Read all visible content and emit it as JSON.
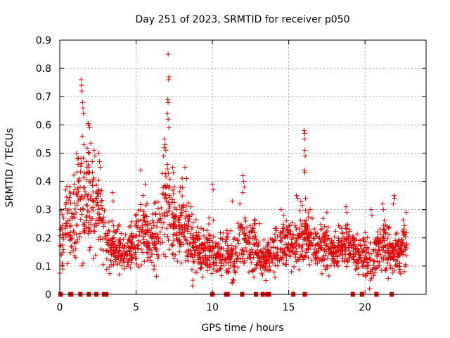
{
  "chart_data": {
    "type": "scatter",
    "title": "Day 251 of 2023, SRMTID for receiver p050",
    "xlabel": "GPS time / hours",
    "ylabel": "SRMTID / TECUs",
    "xlim": [
      0,
      24
    ],
    "ylim": [
      0,
      0.9
    ],
    "xticks": [
      0,
      5,
      10,
      15,
      20
    ],
    "xtick_labels": [
      "0",
      "5",
      "10",
      "15",
      "20"
    ],
    "yticks": [
      0,
      0.1,
      0.2,
      0.3,
      0.4,
      0.5,
      0.6,
      0.7,
      0.8,
      0.9
    ],
    "ytick_labels": [
      "0",
      "0.1",
      "0.2",
      "0.3",
      "0.4",
      "0.5",
      "0.6",
      "0.7",
      "0.8",
      "0.9"
    ],
    "grid": true,
    "marker": "plus",
    "marker_color": "#e00000",
    "baseline_gaps_x": [
      0.05,
      0.7,
      0.75,
      1.35,
      1.9,
      2.4,
      2.9,
      3.05,
      10.0,
      10.9,
      11.0,
      11.95,
      12.85,
      13.3,
      13.6,
      13.7,
      15.3,
      16.05,
      19.2,
      19.8,
      20.75,
      21.75
    ],
    "envelope": {
      "x": [
        0,
        0.25,
        0.5,
        0.75,
        1,
        1.25,
        1.5,
        1.75,
        2,
        2.25,
        2.5,
        2.75,
        3,
        3.25,
        3.5,
        3.75,
        4,
        4.25,
        4.5,
        4.75,
        5,
        5.25,
        5.5,
        5.75,
        6,
        6.25,
        6.5,
        6.75,
        7,
        7.25,
        7.5,
        7.75,
        8,
        8.25,
        8.5,
        8.75,
        9,
        9.25,
        9.5,
        9.75,
        10,
        10.25,
        10.5,
        10.75,
        11,
        11.25,
        11.5,
        11.75,
        12,
        12.25,
        12.5,
        12.75,
        13,
        13.25,
        13.5,
        13.75,
        14,
        14.25,
        14.5,
        14.75,
        15,
        15.25,
        15.5,
        15.75,
        16,
        16.25,
        16.5,
        16.75,
        17,
        17.25,
        17.5,
        17.75,
        18,
        18.25,
        18.5,
        18.75,
        19,
        19.25,
        19.5,
        19.75,
        20,
        20.25,
        20.5,
        20.75,
        21,
        21.25,
        21.5,
        21.75,
        22,
        22.25,
        22.5,
        22.75
      ],
      "center": [
        0.18,
        0.22,
        0.26,
        0.24,
        0.27,
        0.32,
        0.35,
        0.36,
        0.34,
        0.33,
        0.3,
        0.25,
        0.19,
        0.18,
        0.17,
        0.16,
        0.15,
        0.15,
        0.16,
        0.17,
        0.19,
        0.22,
        0.23,
        0.2,
        0.19,
        0.21,
        0.23,
        0.27,
        0.3,
        0.28,
        0.25,
        0.24,
        0.26,
        0.22,
        0.2,
        0.18,
        0.17,
        0.15,
        0.15,
        0.16,
        0.17,
        0.14,
        0.13,
        0.14,
        0.15,
        0.13,
        0.14,
        0.16,
        0.19,
        0.18,
        0.17,
        0.18,
        0.14,
        0.12,
        0.12,
        0.13,
        0.13,
        0.16,
        0.17,
        0.18,
        0.19,
        0.18,
        0.19,
        0.2,
        0.22,
        0.2,
        0.18,
        0.17,
        0.16,
        0.17,
        0.16,
        0.15,
        0.15,
        0.16,
        0.17,
        0.18,
        0.16,
        0.15,
        0.14,
        0.15,
        0.14,
        0.11,
        0.12,
        0.15,
        0.17,
        0.18,
        0.16,
        0.15,
        0.14,
        0.15,
        0.17,
        0.18
      ],
      "spread": [
        0.06,
        0.09,
        0.1,
        0.09,
        0.1,
        0.12,
        0.14,
        0.15,
        0.14,
        0.13,
        0.1,
        0.08,
        0.06,
        0.06,
        0.06,
        0.05,
        0.05,
        0.05,
        0.06,
        0.06,
        0.07,
        0.08,
        0.09,
        0.07,
        0.07,
        0.08,
        0.09,
        0.12,
        0.13,
        0.12,
        0.1,
        0.09,
        0.1,
        0.08,
        0.07,
        0.06,
        0.06,
        0.05,
        0.05,
        0.06,
        0.07,
        0.05,
        0.05,
        0.05,
        0.06,
        0.05,
        0.06,
        0.06,
        0.08,
        0.07,
        0.06,
        0.07,
        0.05,
        0.04,
        0.04,
        0.05,
        0.05,
        0.06,
        0.06,
        0.06,
        0.07,
        0.06,
        0.06,
        0.07,
        0.08,
        0.07,
        0.06,
        0.06,
        0.05,
        0.06,
        0.05,
        0.05,
        0.05,
        0.05,
        0.05,
        0.06,
        0.05,
        0.05,
        0.05,
        0.05,
        0.05,
        0.04,
        0.05,
        0.06,
        0.06,
        0.07,
        0.06,
        0.05,
        0.05,
        0.05,
        0.06,
        0.06
      ]
    },
    "spikes": [
      {
        "x": 1.4,
        "y": 0.76
      },
      {
        "x": 1.42,
        "y": 0.74
      },
      {
        "x": 1.45,
        "y": 0.72
      },
      {
        "x": 1.5,
        "y": 0.68
      },
      {
        "x": 1.52,
        "y": 0.66
      },
      {
        "x": 1.55,
        "y": 0.64
      },
      {
        "x": 1.48,
        "y": 0.56
      },
      {
        "x": 1.58,
        "y": 0.53
      },
      {
        "x": 1.1,
        "y": 0.5
      },
      {
        "x": 1.15,
        "y": 0.48
      },
      {
        "x": 1.2,
        "y": 0.46
      },
      {
        "x": 1.9,
        "y": 0.6
      },
      {
        "x": 1.95,
        "y": 0.59
      },
      {
        "x": 2.25,
        "y": 0.51
      },
      {
        "x": 2.3,
        "y": 0.49
      },
      {
        "x": 2.55,
        "y": 0.5
      },
      {
        "x": 2.6,
        "y": 0.47
      },
      {
        "x": 2.65,
        "y": 0.45
      },
      {
        "x": 3.45,
        "y": 0.36
      },
      {
        "x": 3.5,
        "y": 0.33
      },
      {
        "x": 5.3,
        "y": 0.44
      },
      {
        "x": 5.6,
        "y": 0.39
      },
      {
        "x": 6.85,
        "y": 0.55
      },
      {
        "x": 6.9,
        "y": 0.53
      },
      {
        "x": 6.95,
        "y": 0.51
      },
      {
        "x": 6.8,
        "y": 0.49
      },
      {
        "x": 7.05,
        "y": 0.46
      },
      {
        "x": 7.1,
        "y": 0.85
      },
      {
        "x": 7.15,
        "y": 0.77
      },
      {
        "x": 7.13,
        "y": 0.76
      },
      {
        "x": 7.08,
        "y": 0.69
      },
      {
        "x": 7.1,
        "y": 0.68
      },
      {
        "x": 7.05,
        "y": 0.64
      },
      {
        "x": 7.1,
        "y": 0.62
      },
      {
        "x": 7.15,
        "y": 0.59
      },
      {
        "x": 7.4,
        "y": 0.45
      },
      {
        "x": 7.45,
        "y": 0.43
      },
      {
        "x": 8.2,
        "y": 0.45
      },
      {
        "x": 8.3,
        "y": 0.41
      },
      {
        "x": 8.6,
        "y": 0.31
      },
      {
        "x": 10.0,
        "y": 0.39
      },
      {
        "x": 10.05,
        "y": 0.37
      },
      {
        "x": 11.3,
        "y": 0.33
      },
      {
        "x": 11.8,
        "y": 0.32
      },
      {
        "x": 12.0,
        "y": 0.42
      },
      {
        "x": 12.05,
        "y": 0.4
      },
      {
        "x": 12.1,
        "y": 0.38
      },
      {
        "x": 12.0,
        "y": 0.36
      },
      {
        "x": 13.1,
        "y": 0.25
      },
      {
        "x": 14.5,
        "y": 0.3
      },
      {
        "x": 15.5,
        "y": 0.35
      },
      {
        "x": 15.6,
        "y": 0.34
      },
      {
        "x": 16.0,
        "y": 0.58
      },
      {
        "x": 16.05,
        "y": 0.57
      },
      {
        "x": 16.03,
        "y": 0.55
      },
      {
        "x": 16.05,
        "y": 0.51
      },
      {
        "x": 16.08,
        "y": 0.49
      },
      {
        "x": 16.02,
        "y": 0.44
      },
      {
        "x": 16.06,
        "y": 0.43
      },
      {
        "x": 16.1,
        "y": 0.34
      },
      {
        "x": 16.4,
        "y": 0.3
      },
      {
        "x": 17.5,
        "y": 0.29
      },
      {
        "x": 18.75,
        "y": 0.31
      },
      {
        "x": 18.8,
        "y": 0.29
      },
      {
        "x": 20.4,
        "y": 0.3
      },
      {
        "x": 20.45,
        "y": 0.28
      },
      {
        "x": 21.15,
        "y": 0.32
      },
      {
        "x": 21.2,
        "y": 0.3
      },
      {
        "x": 21.9,
        "y": 0.35
      },
      {
        "x": 21.95,
        "y": 0.34
      },
      {
        "x": 21.85,
        "y": 0.32
      },
      {
        "x": 22.7,
        "y": 0.29
      },
      {
        "x": 20.3,
        "y": 0.02
      },
      {
        "x": 20.35,
        "y": 0.05
      },
      {
        "x": 8.7,
        "y": 0.03
      },
      {
        "x": 8.72,
        "y": 0.05
      },
      {
        "x": 11.3,
        "y": 0.04
      },
      {
        "x": 11.4,
        "y": 0.05
      },
      {
        "x": 14.1,
        "y": 0.06
      },
      {
        "x": 3.9,
        "y": 0.07
      }
    ]
  }
}
